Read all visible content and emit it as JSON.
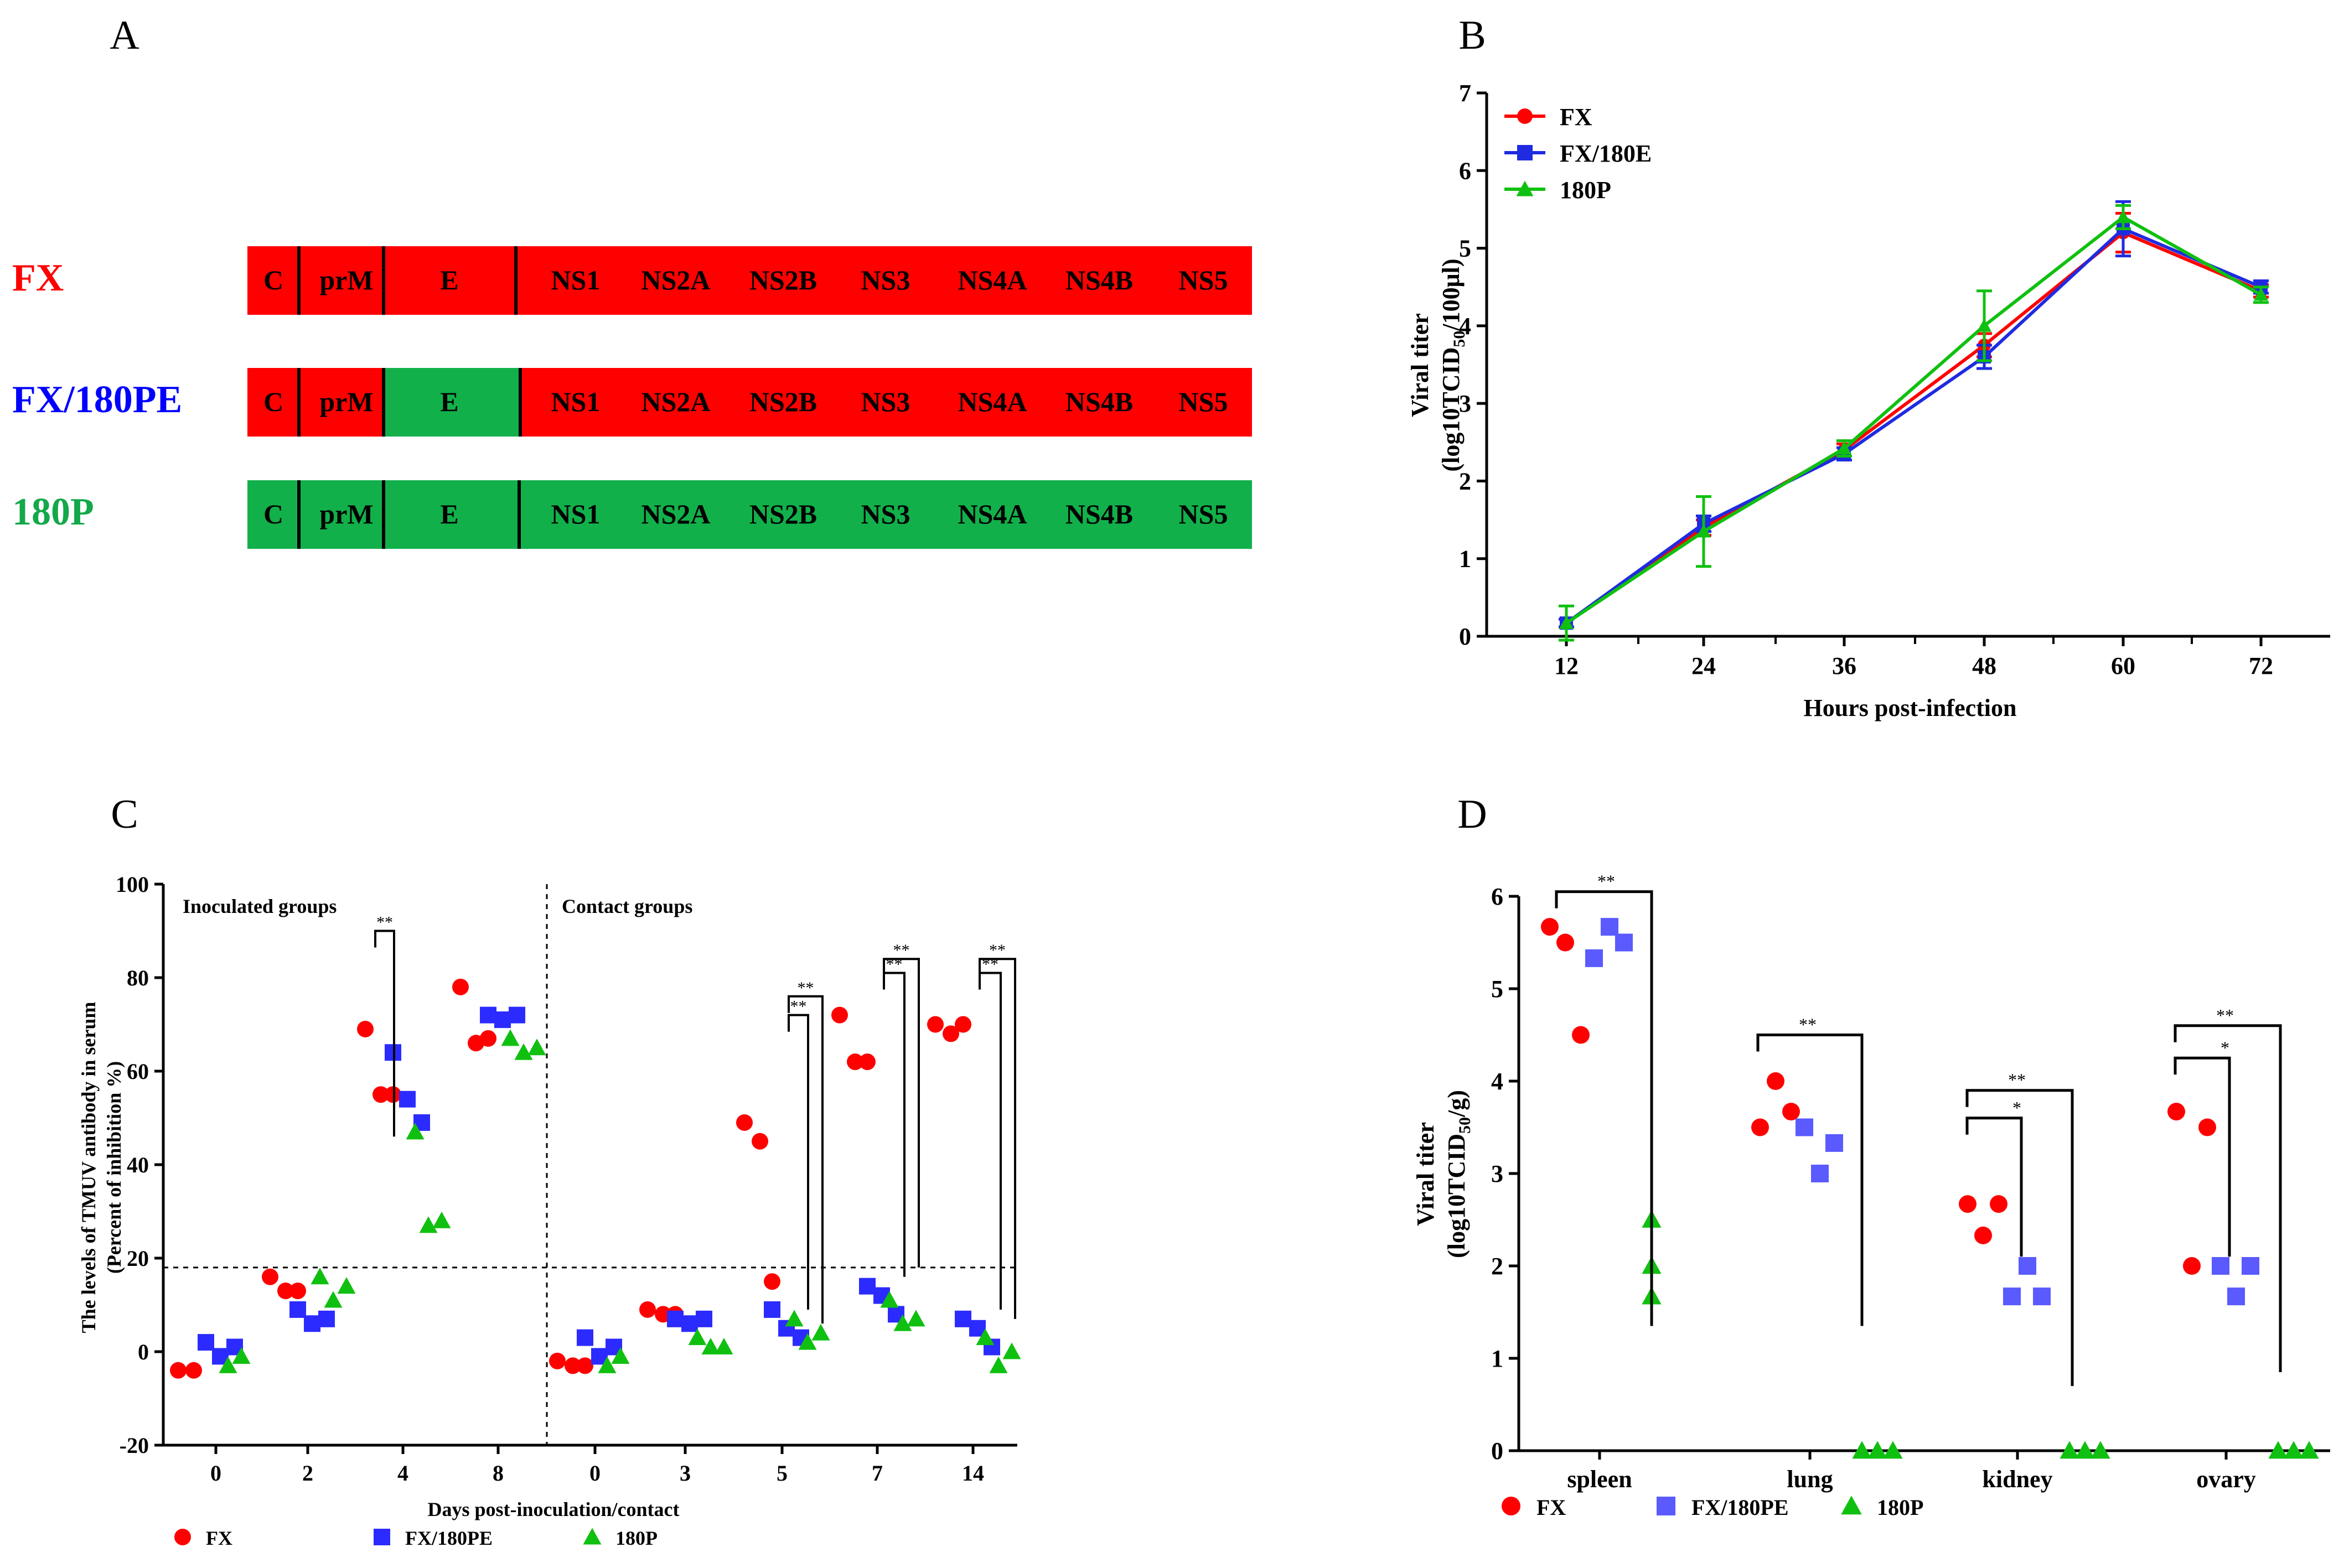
{
  "colors": {
    "fx": "#ff0000",
    "fx180pe_line": "#1f2be0",
    "fx180pe_marker": "#2b2bff",
    "fx180pe_d": "#5a5aff",
    "p180": "#10c010",
    "segment_red": "#ff0000",
    "segment_green": "#12b04a",
    "label_green": "#13a84a",
    "label_blue": "#0000ff"
  },
  "panel_a": {
    "letter": "A",
    "rows": [
      {
        "name": "FX",
        "name_color": "#ff0000",
        "e_color": "#ff0000",
        "rest_color": "#ff0000"
      },
      {
        "name": "FX/180PE",
        "name_color": "#0000ff",
        "e_color": "#12b04a",
        "rest_color": "#ff0000"
      },
      {
        "name": "180P",
        "name_color": "#13a84a",
        "e_color": "#12b04a",
        "rest_color": "#12b04a"
      }
    ],
    "genes": [
      "C",
      "prM",
      "E",
      "NS1",
      "NS2A",
      "NS2B",
      "NS3",
      "NS4A",
      "NS4B",
      "NS5"
    ]
  },
  "chart_data": [
    {
      "panel": "B",
      "type": "line",
      "xlabel": "Hours post-infection",
      "ylabel_line1": "Viral titer",
      "ylabel_line2_pre": "(log10TCID",
      "ylabel_line2_sub": "50",
      "ylabel_line2_post": "/100μl)",
      "x": [
        12,
        24,
        36,
        48,
        60,
        72
      ],
      "ylim": [
        0,
        7
      ],
      "yticks": [
        0,
        1,
        2,
        3,
        4,
        5,
        6,
        7
      ],
      "legend": [
        "FX",
        "FX/180E",
        "180P"
      ],
      "series": [
        {
          "name": "FX",
          "values": [
            0.17,
            1.4,
            2.4,
            3.75,
            5.2,
            4.45
          ],
          "errors": [
            0.05,
            0.1,
            0.08,
            0.15,
            0.25,
            0.08
          ]
        },
        {
          "name": "FX/180E",
          "values": [
            0.17,
            1.45,
            2.35,
            3.6,
            5.25,
            4.5
          ],
          "errors": [
            0.05,
            0.1,
            0.08,
            0.15,
            0.35,
            0.08
          ]
        },
        {
          "name": "180P",
          "values": [
            0.17,
            1.35,
            2.42,
            4.0,
            5.4,
            4.4
          ],
          "errors": [
            0.22,
            0.45,
            0.1,
            0.45,
            0.15,
            0.1
          ]
        }
      ]
    },
    {
      "panel": "C",
      "type": "scatter",
      "xlabel": "Days post-inoculation/contact",
      "ylabel_line1": "The levels of TMUV antibody in serum",
      "ylabel_line2": "(Percent of inhibition %)",
      "ylim": [
        -20,
        100
      ],
      "yticks": [
        -20,
        0,
        20,
        40,
        60,
        80,
        100
      ],
      "categories": [
        "0",
        "2",
        "4",
        "8",
        "0",
        "3",
        "5",
        "7",
        "14"
      ],
      "region_labels": [
        "Inoculated groups",
        "Contact groups"
      ],
      "threshold": 18,
      "legend": [
        "FX",
        "FX/180PE",
        "180P"
      ],
      "groups": [
        {
          "fx": [
            -4,
            -4
          ],
          "fx180pe": [
            2,
            -1,
            1
          ],
          "p180": [
            -3,
            -1
          ]
        },
        {
          "fx": [
            16,
            13,
            13
          ],
          "fx180pe": [
            9,
            6,
            7
          ],
          "p180": [
            16,
            11,
            14
          ]
        },
        {
          "fx": [
            69,
            55,
            55
          ],
          "fx180pe": [
            64,
            54,
            49
          ],
          "p180": [
            47,
            27,
            28
          ]
        },
        {
          "fx": [
            78,
            66,
            67
          ],
          "fx180pe": [
            72,
            71,
            72
          ],
          "p180": [
            67,
            64,
            65
          ]
        },
        {
          "fx": [
            -2,
            -3,
            -3
          ],
          "fx180pe": [
            3,
            -1,
            1
          ],
          "p180": [
            -3,
            -1
          ]
        },
        {
          "fx": [
            9,
            8,
            8
          ],
          "fx180pe": [
            7,
            6,
            7
          ],
          "p180": [
            3,
            1,
            1
          ]
        },
        {
          "fx": [
            49,
            45,
            15
          ],
          "fx180pe": [
            9,
            5,
            3
          ],
          "p180": [
            7,
            2,
            4
          ]
        },
        {
          "fx": [
            72,
            62,
            62
          ],
          "fx180pe": [
            14,
            12,
            8
          ],
          "p180": [
            11,
            6,
            7
          ]
        },
        {
          "fx": [
            70,
            68,
            70
          ],
          "fx180pe": [
            7,
            5,
            1
          ],
          "p180": [
            3,
            -3,
            0
          ]
        }
      ],
      "significance": [
        "**",
        "**",
        "**",
        "**",
        "**",
        "**",
        "**"
      ]
    },
    {
      "panel": "D",
      "type": "scatter",
      "ylabel_line1": "Viral titer",
      "ylabel_line2_pre": "(log10TCID",
      "ylabel_line2_sub": "50",
      "ylabel_line2_post": "/g)",
      "ylim": [
        0,
        6
      ],
      "yticks": [
        0,
        1,
        2,
        3,
        4,
        5,
        6
      ],
      "categories": [
        "spleen",
        "lung",
        "kidney",
        "ovary"
      ],
      "legend": [
        "FX",
        "FX/180PE",
        "180P"
      ],
      "groups": [
        {
          "fx": [
            5.67,
            5.5,
            4.5
          ],
          "fx180pe": [
            5.33,
            5.67,
            5.5
          ],
          "p180": [
            2.5,
            2.0,
            1.67
          ]
        },
        {
          "fx": [
            3.5,
            4.0,
            3.67
          ],
          "fx180pe": [
            3.5,
            3.0,
            3.33
          ],
          "p180": [
            0,
            0,
            0
          ]
        },
        {
          "fx": [
            2.67,
            2.33,
            2.67
          ],
          "fx180pe": [
            1.67,
            2.0,
            1.67
          ],
          "p180": [
            0,
            0,
            0
          ]
        },
        {
          "fx": [
            3.67,
            2.0,
            3.5
          ],
          "fx180pe": [
            2.0,
            1.67,
            2.0
          ],
          "p180": [
            0,
            0,
            0
          ]
        }
      ],
      "significance": [
        "**",
        "**",
        "*",
        "**",
        "*",
        "**"
      ]
    }
  ],
  "panel_letters": {
    "b": "B",
    "c": "C",
    "d": "D"
  }
}
